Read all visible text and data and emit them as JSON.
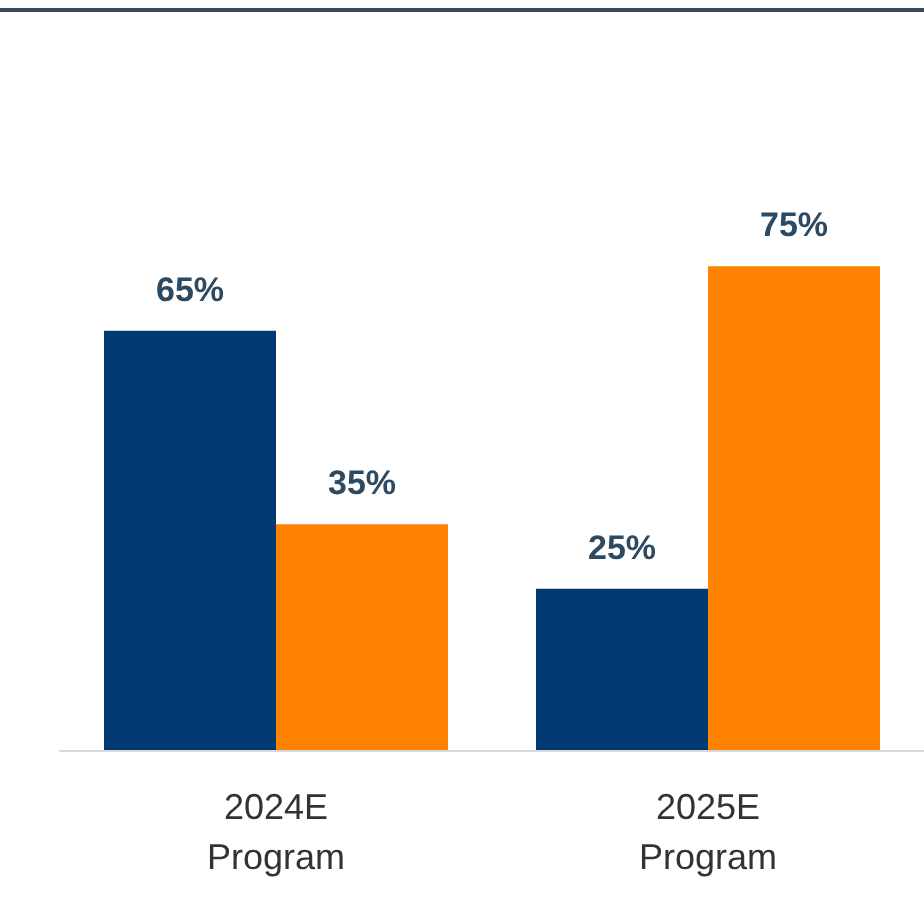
{
  "chart_data": {
    "type": "bar",
    "categories": [
      "2024E\nProgram",
      "2025E\nProgram"
    ],
    "series": [
      {
        "color": "#003a70",
        "values": [
          65,
          25
        ],
        "value_labels": [
          "65%",
          "25%"
        ]
      },
      {
        "color": "#ff8200",
        "values": [
          35,
          75
        ],
        "value_labels": [
          "35%",
          "75%"
        ]
      }
    ],
    "grid": false
  }
}
